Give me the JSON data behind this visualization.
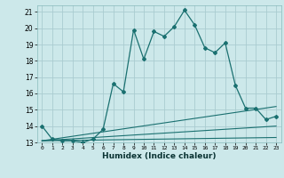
{
  "title": "",
  "xlabel": "Humidex (Indice chaleur)",
  "bg_color": "#cce8ea",
  "grid_color": "#aaccd0",
  "line_color": "#1a7070",
  "xlim": [
    -0.5,
    23.5
  ],
  "ylim": [
    13,
    21.4
  ],
  "yticks": [
    13,
    14,
    15,
    16,
    17,
    18,
    19,
    20,
    21
  ],
  "xticks": [
    0,
    1,
    2,
    3,
    4,
    5,
    6,
    7,
    8,
    9,
    10,
    11,
    12,
    13,
    14,
    15,
    16,
    17,
    18,
    19,
    20,
    21,
    22,
    23
  ],
  "series_main": {
    "x": [
      0,
      1,
      2,
      3,
      4,
      5,
      6,
      7,
      8,
      9,
      10,
      11,
      12,
      13,
      14,
      15,
      16,
      17,
      18,
      19,
      20,
      21,
      22,
      23
    ],
    "y": [
      14.0,
      13.2,
      13.1,
      13.1,
      13.0,
      13.2,
      13.8,
      16.6,
      16.1,
      19.9,
      18.1,
      19.8,
      19.5,
      20.1,
      21.1,
      20.2,
      18.8,
      18.5,
      19.1,
      16.5,
      15.1,
      15.1,
      14.4,
      14.6
    ]
  },
  "series_lines": [
    {
      "x": [
        0,
        23
      ],
      "y": [
        13.1,
        13.3
      ]
    },
    {
      "x": [
        0,
        23
      ],
      "y": [
        13.1,
        14.0
      ]
    },
    {
      "x": [
        0,
        23
      ],
      "y": [
        13.1,
        15.2
      ]
    }
  ]
}
